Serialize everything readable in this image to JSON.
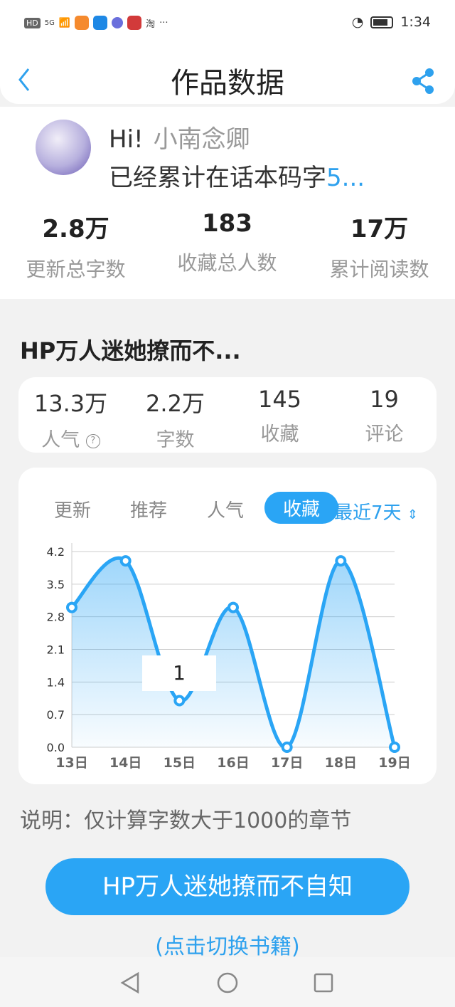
{
  "status_bar": {
    "left": [
      "HD",
      "5G"
    ],
    "carrier_extra": "淘",
    "more": "···",
    "time": "1:34"
  },
  "header": {
    "title": "作品数据",
    "back_icon": "chevron-left-icon",
    "share_icon": "share-icon"
  },
  "profile": {
    "greeting": "Hi!",
    "username": "小南念卿",
    "total_prefix": "已经累计在话本码字",
    "total_value": "5...",
    "stats": [
      {
        "value": "2.8万",
        "label": "更新总字数"
      },
      {
        "value": "183",
        "label": "收藏总人数"
      },
      {
        "value": "17万",
        "label": "累计阅读数"
      }
    ]
  },
  "book": {
    "title": "HP万人迷她撩而不...",
    "stats": [
      {
        "value": "13.3万",
        "label": "人气"
      },
      {
        "value": "2.2万",
        "label": "字数"
      },
      {
        "value": "145",
        "label": "收藏"
      },
      {
        "value": "19",
        "label": "评论"
      }
    ]
  },
  "chart_tabs": [
    {
      "label": "更新"
    },
    {
      "label": "推荐"
    },
    {
      "label": "人气"
    },
    {
      "label": "收藏",
      "active": true
    }
  ],
  "range_select": "最近7天",
  "tooltip": "1",
  "chart_data": {
    "type": "line",
    "smooth": true,
    "area_fill": true,
    "categories": [
      "13日",
      "14日",
      "15日",
      "16日",
      "17日",
      "18日",
      "19日"
    ],
    "values": [
      3,
      4,
      1,
      3,
      0,
      4,
      0
    ],
    "yticks": [
      "0.0",
      "0.7",
      "1.4",
      "2.1",
      "2.8",
      "3.5",
      "4.2"
    ],
    "ylim": [
      0,
      4.2
    ],
    "grid": true,
    "color": "#2aa5f5"
  },
  "note": "说明：仅计算字数大于1000的章节",
  "book_button": "HP万人迷她撩而不自知",
  "switch_link": "(点击切换书籍)",
  "colors": {
    "accent": "#2aa5f5",
    "background": "#f2f2f2"
  }
}
